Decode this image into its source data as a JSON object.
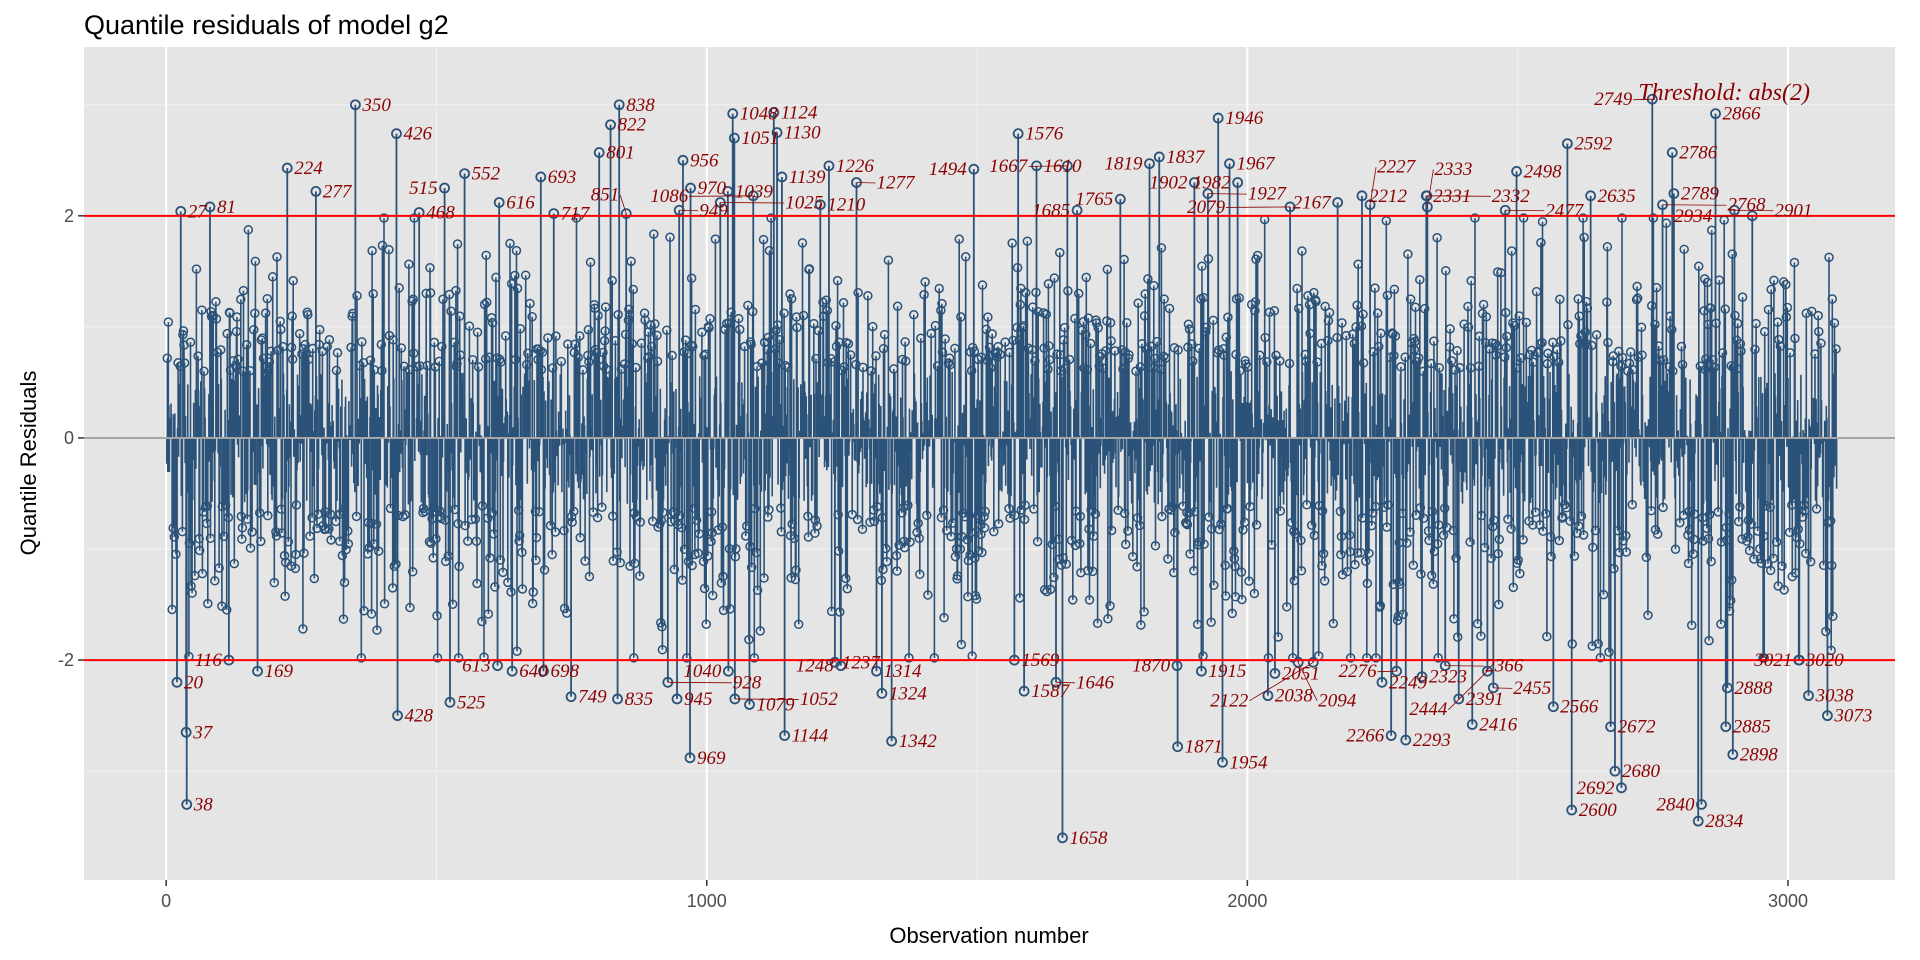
{
  "chart_data": {
    "type": "scatter",
    "subtype": "lollipop / needle plot",
    "title": "Quantile residuals of model g2",
    "xlabel": "Observation number",
    "ylabel": "Quantile Residuals",
    "xlim": [
      -152,
      3198
    ],
    "ylim": [
      -3.98,
      3.52
    ],
    "xticks": [
      0,
      1000,
      2000,
      3000
    ],
    "yticks": [
      -2,
      0,
      2
    ],
    "grid": true,
    "threshold": 2,
    "threshold_label": "Threshold: abs(2)",
    "colors": {
      "points": "#2b5278",
      "threshold": "#ff0000",
      "labels": "#8b0000",
      "zero_line": "#a6a6a6",
      "panel": "#e5e5e5"
    },
    "labeled_points": [
      [
        27,
        2.04
      ],
      [
        81,
        2.08
      ],
      [
        224,
        2.43
      ],
      [
        277,
        2.22
      ],
      [
        350,
        3.0
      ],
      [
        426,
        2.74
      ],
      [
        468,
        2.03
      ],
      [
        515,
        2.25
      ],
      [
        552,
        2.38
      ],
      [
        616,
        2.12
      ],
      [
        693,
        2.35
      ],
      [
        717,
        2.02
      ],
      [
        801,
        2.57
      ],
      [
        822,
        2.82
      ],
      [
        838,
        3.0
      ],
      [
        851,
        2.02
      ],
      [
        949,
        2.05
      ],
      [
        956,
        2.5
      ],
      [
        970,
        2.25
      ],
      [
        1025,
        2.12
      ],
      [
        1039,
        2.22
      ],
      [
        1048,
        2.92
      ],
      [
        1051,
        2.7
      ],
      [
        1086,
        2.18
      ],
      [
        1124,
        2.93
      ],
      [
        1130,
        2.75
      ],
      [
        1139,
        2.35
      ],
      [
        1210,
        2.1
      ],
      [
        1226,
        2.45
      ],
      [
        1277,
        2.3
      ],
      [
        1494,
        2.42
      ],
      [
        1576,
        2.74
      ],
      [
        1610,
        2.45
      ],
      [
        1667,
        2.45
      ],
      [
        1685,
        2.05
      ],
      [
        1765,
        2.15
      ],
      [
        1819,
        2.47
      ],
      [
        1837,
        2.53
      ],
      [
        1902,
        2.3
      ],
      [
        1927,
        2.2
      ],
      [
        1946,
        2.88
      ],
      [
        1967,
        2.47
      ],
      [
        1982,
        2.3
      ],
      [
        2079,
        2.08
      ],
      [
        2167,
        2.12
      ],
      [
        2212,
        2.18
      ],
      [
        2227,
        2.1
      ],
      [
        2331,
        2.18
      ],
      [
        2332,
        2.18
      ],
      [
        2333,
        2.08
      ],
      [
        2477,
        2.05
      ],
      [
        2498,
        2.4
      ],
      [
        2592,
        2.65
      ],
      [
        2635,
        2.18
      ],
      [
        2749,
        3.05
      ],
      [
        2768,
        2.1
      ],
      [
        2786,
        2.57
      ],
      [
        2789,
        2.2
      ],
      [
        2866,
        2.92
      ],
      [
        2901,
        2.05
      ],
      [
        2934,
        2.0
      ],
      [
        20,
        -2.2
      ],
      [
        37,
        -2.65
      ],
      [
        38,
        -3.3
      ],
      [
        116,
        -2.0
      ],
      [
        169,
        -2.1
      ],
      [
        428,
        -2.5
      ],
      [
        525,
        -2.38
      ],
      [
        613,
        -2.05
      ],
      [
        640,
        -2.1
      ],
      [
        698,
        -2.1
      ],
      [
        749,
        -2.33
      ],
      [
        835,
        -2.35
      ],
      [
        928,
        -2.2
      ],
      [
        945,
        -2.35
      ],
      [
        969,
        -2.88
      ],
      [
        1040,
        -2.1
      ],
      [
        1052,
        -2.35
      ],
      [
        1079,
        -2.4
      ],
      [
        1144,
        -2.68
      ],
      [
        1237,
        -2.02
      ],
      [
        1248,
        -2.05
      ],
      [
        1314,
        -2.1
      ],
      [
        1324,
        -2.3
      ],
      [
        1342,
        -2.73
      ],
      [
        1569,
        -2.0
      ],
      [
        1587,
        -2.28
      ],
      [
        1646,
        -2.2
      ],
      [
        1658,
        -3.6
      ],
      [
        1870,
        -2.05
      ],
      [
        1871,
        -2.78
      ],
      [
        1915,
        -2.1
      ],
      [
        1954,
        -2.92
      ],
      [
        2038,
        -2.32
      ],
      [
        2051,
        -2.12
      ],
      [
        2094,
        -2.02
      ],
      [
        2122,
        -2.02
      ],
      [
        2249,
        -2.2
      ],
      [
        2266,
        -2.68
      ],
      [
        2276,
        -2.1
      ],
      [
        2293,
        -2.72
      ],
      [
        2323,
        -2.15
      ],
      [
        2366,
        -2.05
      ],
      [
        2391,
        -2.35
      ],
      [
        2416,
        -2.58
      ],
      [
        2444,
        -2.1
      ],
      [
        2455,
        -2.25
      ],
      [
        2566,
        -2.42
      ],
      [
        2600,
        -3.35
      ],
      [
        2672,
        -2.6
      ],
      [
        2680,
        -3.0
      ],
      [
        2692,
        -3.15
      ],
      [
        2834,
        -3.45
      ],
      [
        2840,
        -3.3
      ],
      [
        2885,
        -2.6
      ],
      [
        2888,
        -2.25
      ],
      [
        2898,
        -2.85
      ],
      [
        3020,
        -2.0
      ],
      [
        3021,
        -2.0
      ],
      [
        3038,
        -2.32
      ],
      [
        3073,
        -2.5
      ]
    ]
  }
}
